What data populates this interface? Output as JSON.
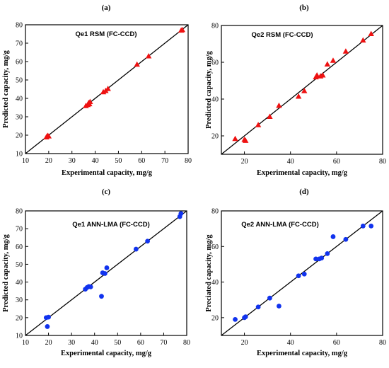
{
  "colors": {
    "rsm_marker": "#ee1111",
    "ann_marker": "#1133ee",
    "line": "#000000",
    "frame": "#000000"
  },
  "chart_data": [
    {
      "id": "a",
      "type": "scatter",
      "panel_label": "(a)",
      "title": "Qe1 RSM (FC-CCD)",
      "xlabel": "Experimental capacity, mg/g",
      "ylabel": "Predicted capacity, mg/g",
      "xlim": [
        10,
        80
      ],
      "ylim": [
        10,
        80
      ],
      "xticks": [
        10,
        20,
        30,
        40,
        50,
        60,
        70,
        80
      ],
      "yticks": [
        10,
        20,
        30,
        40,
        50,
        60,
        70,
        80
      ],
      "marker": "triangle",
      "marker_color": "#ee1111",
      "reference_line": "y = x",
      "points": [
        [
          19,
          19
        ],
        [
          19.5,
          19.8
        ],
        [
          20,
          19.5
        ],
        [
          36,
          36
        ],
        [
          36.8,
          36.6
        ],
        [
          37.2,
          37.6
        ],
        [
          37.5,
          37
        ],
        [
          37.8,
          38.2
        ],
        [
          43.5,
          43.5
        ],
        [
          44.5,
          44.2
        ],
        [
          45.5,
          45.3
        ],
        [
          58,
          58.5
        ],
        [
          63,
          63
        ],
        [
          77,
          77
        ],
        [
          77.5,
          77.3
        ]
      ]
    },
    {
      "id": "b",
      "type": "scatter",
      "panel_label": "(b)",
      "title": "Qe2 RSM (FC-CCD)",
      "xlabel": "Experimental capacity, mg/g",
      "ylabel": "Predicted capacity, mg/g",
      "xlim": [
        10,
        80
      ],
      "ylim": [
        10,
        80
      ],
      "xticks": [
        20,
        40,
        60,
        80
      ],
      "yticks": [
        20,
        40,
        60,
        80
      ],
      "marker": "triangle",
      "marker_color": "#ee1111",
      "reference_line": "y = x",
      "points": [
        [
          16,
          18.5
        ],
        [
          20,
          18
        ],
        [
          20.5,
          17.5
        ],
        [
          26,
          26
        ],
        [
          31,
          30.5
        ],
        [
          35,
          36.5
        ],
        [
          43.5,
          41.5
        ],
        [
          46,
          44.5
        ],
        [
          51,
          52
        ],
        [
          51.5,
          53
        ],
        [
          53,
          52.5
        ],
        [
          54,
          53
        ],
        [
          56,
          59
        ],
        [
          58.5,
          61
        ],
        [
          64,
          66
        ],
        [
          71.5,
          72
        ],
        [
          75,
          75.5
        ]
      ]
    },
    {
      "id": "c",
      "type": "scatter",
      "panel_label": "(c)",
      "title": "Qe1 ANN-LMA (FC-CCD)",
      "xlabel": "Experimental capacity, mg/g",
      "ylabel": "Predicted capacity, mg/g",
      "xlim": [
        10,
        80
      ],
      "ylim": [
        10,
        80
      ],
      "xticks": [
        10,
        20,
        30,
        40,
        50,
        60,
        70,
        80
      ],
      "yticks": [
        10,
        20,
        30,
        40,
        50,
        60,
        70,
        80
      ],
      "marker": "circle",
      "marker_color": "#1133ee",
      "reference_line": "y = x",
      "points": [
        [
          19,
          20
        ],
        [
          19.5,
          15
        ],
        [
          20,
          20.3
        ],
        [
          36,
          36
        ],
        [
          36.8,
          37
        ],
        [
          37.5,
          37.5
        ],
        [
          38.3,
          37.3
        ],
        [
          43,
          32
        ],
        [
          43.5,
          45.2
        ],
        [
          44.5,
          44.8
        ],
        [
          45.3,
          48
        ],
        [
          58,
          58.5
        ],
        [
          63,
          63
        ],
        [
          77,
          76.8
        ],
        [
          77.5,
          78.5
        ]
      ]
    },
    {
      "id": "d",
      "type": "scatter",
      "panel_label": "(d)",
      "title": "Qe2 ANN-LMA (FC-CCD)",
      "xlabel": "Experimental capacity, mg/g",
      "ylabel": "Preciated capacity, mg/g",
      "xlim": [
        10,
        80
      ],
      "ylim": [
        10,
        80
      ],
      "xticks": [
        20,
        40,
        60,
        80
      ],
      "yticks": [
        20,
        40,
        60,
        80
      ],
      "marker": "circle",
      "marker_color": "#1133ee",
      "reference_line": "y = x",
      "points": [
        [
          16,
          19
        ],
        [
          20,
          20
        ],
        [
          20.5,
          20.5
        ],
        [
          26,
          26
        ],
        [
          31,
          31
        ],
        [
          35,
          26.5
        ],
        [
          43.5,
          43.5
        ],
        [
          46,
          44.5
        ],
        [
          51,
          53
        ],
        [
          52.5,
          53
        ],
        [
          53.5,
          53.5
        ],
        [
          56,
          56
        ],
        [
          58.5,
          65.5
        ],
        [
          64,
          64
        ],
        [
          71.5,
          71.5
        ],
        [
          75,
          71.5
        ]
      ]
    }
  ]
}
